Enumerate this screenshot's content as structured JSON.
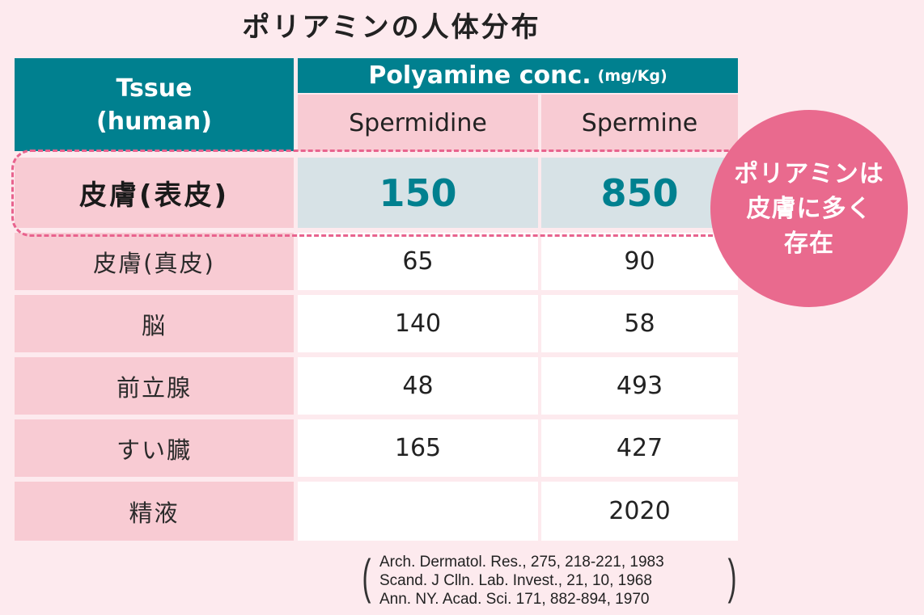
{
  "title": "ポリアミンの人体分布",
  "chart_data": {
    "type": "table",
    "header": {
      "tissue_line1": "Tssue",
      "tissue_line2": "(human)",
      "conc_label": "Polyamine conc.",
      "conc_unit": "(mg/Kg)",
      "columns": [
        "Spermidine",
        "Spermine"
      ]
    },
    "rows": [
      {
        "tissue": "皮膚(表皮)",
        "spermidine": "150",
        "spermine": "850"
      },
      {
        "tissue": "皮膚(真皮)",
        "spermidine": "65",
        "spermine": "90"
      },
      {
        "tissue": "脳",
        "spermidine": "140",
        "spermine": "58"
      },
      {
        "tissue": "前立腺",
        "spermidine": "48",
        "spermine": "493"
      },
      {
        "tissue": "すい臓",
        "spermidine": "165",
        "spermine": "427"
      },
      {
        "tissue": "精液",
        "spermidine": "",
        "spermine": "2020"
      }
    ],
    "highlight_row": 0
  },
  "callout": {
    "lines": [
      "ポリアミンは",
      "皮膚に多く",
      "存在"
    ],
    "color": "#e96a8e"
  },
  "references": [
    "Arch. Dermatol. Res., 275, 218-221, 1983",
    "Scand. J Clln. Lab. Invest., 21, 10, 1968",
    "Ann. NY. Acad. Sci. 171, 882-894, 1970"
  ],
  "colors": {
    "header_teal": "#00808f",
    "label_pink": "#f8cbd3",
    "highlight_gray": "#d7e2e6",
    "background": "#fdeaee"
  }
}
